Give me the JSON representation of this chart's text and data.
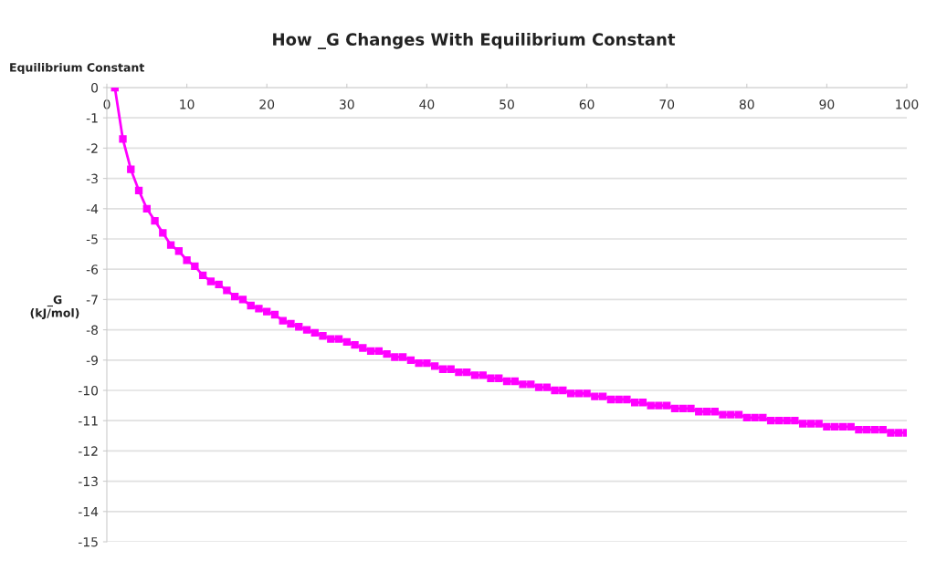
{
  "chart_data": {
    "type": "line",
    "title": "How _G Changes With Equilibrium Constant",
    "xlabel": "Equilibrium Constant",
    "ylabel": "_G\n(kJ/mol)",
    "x": [
      1,
      2,
      3,
      4,
      5,
      6,
      7,
      8,
      9,
      10,
      11,
      12,
      13,
      14,
      15,
      16,
      17,
      18,
      19,
      20,
      21,
      22,
      23,
      24,
      25,
      26,
      27,
      28,
      29,
      30,
      31,
      32,
      33,
      34,
      35,
      36,
      37,
      38,
      39,
      40,
      41,
      42,
      43,
      44,
      45,
      46,
      47,
      48,
      49,
      50,
      51,
      52,
      53,
      54,
      55,
      56,
      57,
      58,
      59,
      60,
      61,
      62,
      63,
      64,
      65,
      66,
      67,
      68,
      69,
      70,
      71,
      72,
      73,
      74,
      75,
      76,
      77,
      78,
      79,
      80,
      81,
      82,
      83,
      84,
      85,
      86,
      87,
      88,
      89,
      90,
      91,
      92,
      93,
      94,
      95,
      96,
      97,
      98,
      99,
      100
    ],
    "series": [
      {
        "color": "#ff00ff",
        "values": [
          0,
          -1.7,
          -2.7,
          -3.4,
          -4.0,
          -4.4,
          -4.8,
          -5.2,
          -5.4,
          -5.7,
          -5.9,
          -6.2,
          -6.4,
          -6.5,
          -6.7,
          -6.9,
          -7.0,
          -7.2,
          -7.3,
          -7.4,
          -7.5,
          -7.7,
          -7.8,
          -7.9,
          -8.0,
          -8.1,
          -8.2,
          -8.3,
          -8.3,
          -8.4,
          -8.5,
          -8.6,
          -8.7,
          -8.7,
          -8.8,
          -8.9,
          -8.9,
          -9.0,
          -9.1,
          -9.1,
          -9.2,
          -9.3,
          -9.3,
          -9.4,
          -9.4,
          -9.5,
          -9.5,
          -9.6,
          -9.6,
          -9.7,
          -9.7,
          -9.8,
          -9.8,
          -9.9,
          -9.9,
          -10.0,
          -10.0,
          -10.1,
          -10.1,
          -10.1,
          -10.2,
          -10.2,
          -10.3,
          -10.3,
          -10.3,
          -10.4,
          -10.4,
          -10.5,
          -10.5,
          -10.5,
          -10.6,
          -10.6,
          -10.6,
          -10.7,
          -10.7,
          -10.7,
          -10.8,
          -10.8,
          -10.8,
          -10.9,
          -10.9,
          -10.9,
          -11.0,
          -11.0,
          -11.0,
          -11.0,
          -11.1,
          -11.1,
          -11.1,
          -11.2,
          -11.2,
          -11.2,
          -11.2,
          -11.3,
          -11.3,
          -11.3,
          -11.3,
          -11.4,
          -11.4,
          -11.4
        ]
      }
    ],
    "xlim": [
      0,
      100
    ],
    "xticks": [
      0,
      10,
      20,
      30,
      40,
      50,
      60,
      70,
      80,
      90,
      100
    ],
    "ylim": [
      -15,
      0
    ],
    "yticks": [
      0,
      -1,
      -2,
      -3,
      -4,
      -5,
      -6,
      -7,
      -8,
      -9,
      -10,
      -11,
      -12,
      -13,
      -14,
      -15
    ],
    "grid": "y",
    "marker": "square",
    "line_style": "solid",
    "legend": false
  }
}
